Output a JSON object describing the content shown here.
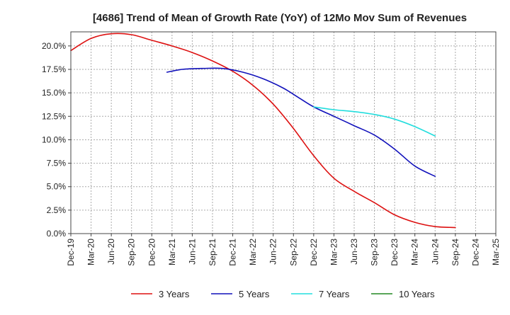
{
  "chart_data": {
    "type": "line",
    "title": "[4686]  Trend of Mean of Growth Rate (YoY) of 12Mo Mov Sum of Revenues",
    "xlabel": "",
    "ylabel": "",
    "ylim": [
      0,
      21.5
    ],
    "y_ticks": [
      0,
      2.5,
      5,
      7.5,
      10,
      12.5,
      15,
      17.5,
      20
    ],
    "y_tick_labels": [
      "0.0%",
      "2.5%",
      "5.0%",
      "7.5%",
      "10.0%",
      "12.5%",
      "15.0%",
      "17.5%",
      "20.0%"
    ],
    "x_tick_labels": [
      "Dec-19",
      "Mar-20",
      "Jun-20",
      "Sep-20",
      "Dec-20",
      "Mar-21",
      "Jun-21",
      "Sep-21",
      "Dec-21",
      "Mar-22",
      "Jun-22",
      "Sep-22",
      "Dec-22",
      "Mar-23",
      "Jun-23",
      "Sep-23",
      "Dec-23",
      "Mar-24",
      "Jun-24",
      "Sep-24",
      "Dec-24",
      "Mar-25"
    ],
    "grid": true,
    "legend_position": "bottom",
    "series": [
      {
        "name": "3 Years",
        "color": "#dd1111",
        "points": [
          [
            0,
            19.5
          ],
          [
            1,
            20.8
          ],
          [
            2,
            21.3
          ],
          [
            3,
            21.2
          ],
          [
            4,
            20.6
          ],
          [
            5,
            20.0
          ],
          [
            6,
            19.3
          ],
          [
            7,
            18.4
          ],
          [
            8,
            17.3
          ],
          [
            9,
            15.8
          ],
          [
            10,
            13.8
          ],
          [
            11,
            11.2
          ],
          [
            12,
            8.3
          ],
          [
            13,
            5.9
          ],
          [
            14,
            4.5
          ],
          [
            15,
            3.3
          ],
          [
            16,
            2.0
          ],
          [
            17,
            1.2
          ],
          [
            18,
            0.75
          ],
          [
            19,
            0.65
          ]
        ]
      },
      {
        "name": "5 Years",
        "color": "#1111bb",
        "points": [
          [
            4.75,
            17.2
          ],
          [
            5.5,
            17.5
          ],
          [
            6.5,
            17.6
          ],
          [
            7.5,
            17.6
          ],
          [
            8.5,
            17.2
          ],
          [
            9.5,
            16.5
          ],
          [
            10.5,
            15.5
          ],
          [
            11.25,
            14.5
          ],
          [
            12,
            13.5
          ],
          [
            13,
            12.5
          ],
          [
            14,
            11.5
          ],
          [
            15,
            10.5
          ],
          [
            16,
            9.0
          ],
          [
            17,
            7.2
          ],
          [
            18,
            6.1
          ]
        ]
      },
      {
        "name": "7 Years",
        "color": "#22dddd",
        "points": [
          [
            12,
            13.5
          ],
          [
            13,
            13.2
          ],
          [
            14,
            13.0
          ],
          [
            15,
            12.7
          ],
          [
            16,
            12.2
          ],
          [
            17,
            11.4
          ],
          [
            18,
            10.4
          ]
        ]
      },
      {
        "name": "10 Years",
        "color": "#228822",
        "points": []
      }
    ]
  }
}
